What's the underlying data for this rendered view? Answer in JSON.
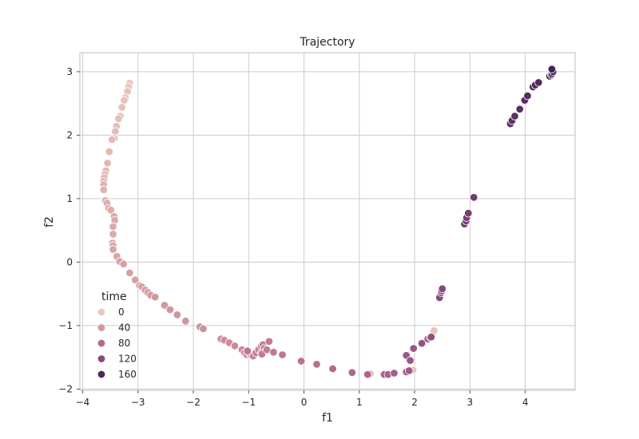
{
  "chart_data": {
    "type": "scatter",
    "title": "Trajectory",
    "xlabel": "f1",
    "ylabel": "f2",
    "xlim": [
      -4.05,
      4.9
    ],
    "ylim": [
      -2.02,
      3.3
    ],
    "xticks": [
      "−4",
      "−3",
      "−2",
      "−1",
      "0",
      "1",
      "2",
      "3",
      "4"
    ],
    "yticks": [
      "−2",
      "−1",
      "0",
      "1",
      "2",
      "3"
    ],
    "grid": true,
    "legend": {
      "title": "time",
      "placement": "lower-left",
      "entries": [
        {
          "label": "0",
          "color": "#e8c7be"
        },
        {
          "label": "40",
          "color": "#d39a9e"
        },
        {
          "label": "80",
          "color": "#b36a8e"
        },
        {
          "label": "120",
          "color": "#874a80"
        },
        {
          "label": "160",
          "color": "#4e2a5c"
        }
      ]
    },
    "hue_name": "time",
    "hue_range": [
      0,
      180
    ],
    "points": [
      {
        "x": -3.15,
        "y": 2.82,
        "t": 0
      },
      {
        "x": -3.17,
        "y": 2.76,
        "t": 1
      },
      {
        "x": -3.19,
        "y": 2.69,
        "t": 2
      },
      {
        "x": -3.23,
        "y": 2.59,
        "t": 3
      },
      {
        "x": -3.25,
        "y": 2.55,
        "t": 4
      },
      {
        "x": -3.29,
        "y": 2.44,
        "t": 5
      },
      {
        "x": -3.32,
        "y": 2.3,
        "t": 6
      },
      {
        "x": -3.35,
        "y": 2.26,
        "t": 7
      },
      {
        "x": -3.39,
        "y": 2.14,
        "t": 8
      },
      {
        "x": -3.41,
        "y": 2.06,
        "t": 9
      },
      {
        "x": -3.43,
        "y": 1.95,
        "t": 10
      },
      {
        "x": -3.47,
        "y": 1.93,
        "t": 11
      },
      {
        "x": -3.52,
        "y": 1.74,
        "t": 12
      },
      {
        "x": -3.55,
        "y": 1.56,
        "t": 13
      },
      {
        "x": -3.58,
        "y": 1.44,
        "t": 14
      },
      {
        "x": -3.6,
        "y": 1.38,
        "t": 15
      },
      {
        "x": -3.61,
        "y": 1.33,
        "t": 16
      },
      {
        "x": -3.62,
        "y": 1.27,
        "t": 17
      },
      {
        "x": -3.62,
        "y": 1.22,
        "t": 18
      },
      {
        "x": -3.62,
        "y": 1.14,
        "t": 19
      },
      {
        "x": -3.59,
        "y": 0.97,
        "t": 20
      },
      {
        "x": -3.56,
        "y": 0.93,
        "t": 21
      },
      {
        "x": -3.53,
        "y": 0.85,
        "t": 22
      },
      {
        "x": -3.49,
        "y": 0.82,
        "t": 23
      },
      {
        "x": -3.43,
        "y": 0.72,
        "t": 24
      },
      {
        "x": -3.42,
        "y": 0.66,
        "t": 25
      },
      {
        "x": -3.45,
        "y": 0.56,
        "t": 26
      },
      {
        "x": -3.45,
        "y": 0.44,
        "t": 27
      },
      {
        "x": -3.46,
        "y": 0.3,
        "t": 28
      },
      {
        "x": -3.45,
        "y": 0.26,
        "t": 29
      },
      {
        "x": -3.45,
        "y": 0.2,
        "t": 30
      },
      {
        "x": -3.38,
        "y": 0.09,
        "t": 31
      },
      {
        "x": -3.33,
        "y": 0.01,
        "t": 32
      },
      {
        "x": -3.26,
        "y": -0.03,
        "t": 33
      },
      {
        "x": -3.15,
        "y": -0.17,
        "t": 34
      },
      {
        "x": -3.05,
        "y": -0.28,
        "t": 35
      },
      {
        "x": -2.97,
        "y": -0.37,
        "t": 36
      },
      {
        "x": -2.93,
        "y": -0.39,
        "t": 37
      },
      {
        "x": -2.87,
        "y": -0.44,
        "t": 38
      },
      {
        "x": -2.82,
        "y": -0.48,
        "t": 39
      },
      {
        "x": -2.77,
        "y": -0.52,
        "t": 40
      },
      {
        "x": -2.69,
        "y": -0.55,
        "t": 41
      },
      {
        "x": -2.52,
        "y": -0.68,
        "t": 42
      },
      {
        "x": -2.42,
        "y": -0.75,
        "t": 43
      },
      {
        "x": -2.29,
        "y": -0.83,
        "t": 44
      },
      {
        "x": -2.14,
        "y": -0.93,
        "t": 45
      },
      {
        "x": -1.88,
        "y": -1.02,
        "t": 46
      },
      {
        "x": -1.82,
        "y": -1.05,
        "t": 47
      },
      {
        "x": -1.5,
        "y": -1.21,
        "t": 48
      },
      {
        "x": -1.44,
        "y": -1.23,
        "t": 49
      },
      {
        "x": -1.35,
        "y": -1.27,
        "t": 50
      },
      {
        "x": -1.25,
        "y": -1.32,
        "t": 51
      },
      {
        "x": -1.12,
        "y": -1.38,
        "t": 52
      },
      {
        "x": -1.07,
        "y": -1.43,
        "t": 53
      },
      {
        "x": -1.03,
        "y": -1.46,
        "t": 54
      },
      {
        "x": -0.98,
        "y": -1.45,
        "t": 55
      },
      {
        "x": -0.95,
        "y": -1.47,
        "t": 56
      },
      {
        "x": -0.92,
        "y": -1.48,
        "t": 57
      },
      {
        "x": -0.87,
        "y": -1.43,
        "t": 58
      },
      {
        "x": -0.82,
        "y": -1.38,
        "t": 59
      },
      {
        "x": -0.77,
        "y": -1.32,
        "t": 60
      },
      {
        "x": -0.74,
        "y": -1.3,
        "t": 61
      },
      {
        "x": -0.72,
        "y": -1.36,
        "t": 62
      },
      {
        "x": -0.77,
        "y": -1.43,
        "t": 63
      },
      {
        "x": -0.76,
        "y": -1.45,
        "t": 64
      },
      {
        "x": -0.67,
        "y": -1.38,
        "t": 65
      },
      {
        "x": -0.63,
        "y": -1.25,
        "t": 66
      },
      {
        "x": -0.55,
        "y": -1.42,
        "t": 67
      },
      {
        "x": -0.39,
        "y": -1.46,
        "t": 68
      },
      {
        "x": -1.02,
        "y": -1.4,
        "t": 70
      },
      {
        "x": -0.05,
        "y": -1.56,
        "t": 73
      },
      {
        "x": 0.23,
        "y": -1.61,
        "t": 76
      },
      {
        "x": 0.52,
        "y": -1.68,
        "t": 80
      },
      {
        "x": 0.87,
        "y": -1.74,
        "t": 84
      },
      {
        "x": 1.15,
        "y": -1.77,
        "t": 86
      },
      {
        "x": 1.2,
        "y": -1.76,
        "t": 8
      },
      {
        "x": 1.45,
        "y": -1.77,
        "t": 90
      },
      {
        "x": 1.52,
        "y": -1.77,
        "t": 92
      },
      {
        "x": 1.63,
        "y": -1.75,
        "t": 95
      },
      {
        "x": 1.85,
        "y": -1.73,
        "t": 98
      },
      {
        "x": 1.9,
        "y": -1.71,
        "t": 100
      },
      {
        "x": 1.97,
        "y": -1.7,
        "t": 5
      },
      {
        "x": 1.85,
        "y": -1.47,
        "t": 102
      },
      {
        "x": 1.92,
        "y": -1.55,
        "t": 104
      },
      {
        "x": 1.98,
        "y": -1.36,
        "t": 106
      },
      {
        "x": 2.13,
        "y": -1.28,
        "t": 108
      },
      {
        "x": 2.24,
        "y": -1.21,
        "t": 110
      },
      {
        "x": 2.28,
        "y": -1.19,
        "t": 112
      },
      {
        "x": 2.3,
        "y": -1.18,
        "t": 113
      },
      {
        "x": 2.33,
        "y": -1.12,
        "t": 2
      },
      {
        "x": 2.35,
        "y": -1.08,
        "t": 3
      },
      {
        "x": 2.45,
        "y": -0.56,
        "t": 118
      },
      {
        "x": 2.48,
        "y": -0.48,
        "t": 120
      },
      {
        "x": 2.49,
        "y": -0.45,
        "t": 121
      },
      {
        "x": 2.5,
        "y": -0.42,
        "t": 122
      },
      {
        "x": 2.9,
        "y": 0.6,
        "t": 130
      },
      {
        "x": 2.93,
        "y": 0.65,
        "t": 131
      },
      {
        "x": 2.94,
        "y": 0.7,
        "t": 132
      },
      {
        "x": 2.97,
        "y": 0.77,
        "t": 133
      },
      {
        "x": 3.07,
        "y": 1.02,
        "t": 136
      },
      {
        "x": 3.73,
        "y": 2.18,
        "t": 148
      },
      {
        "x": 3.76,
        "y": 2.23,
        "t": 149
      },
      {
        "x": 3.81,
        "y": 2.3,
        "t": 150
      },
      {
        "x": 3.9,
        "y": 2.41,
        "t": 152
      },
      {
        "x": 3.99,
        "y": 2.55,
        "t": 154
      },
      {
        "x": 4.04,
        "y": 2.62,
        "t": 155
      },
      {
        "x": 4.14,
        "y": 2.76,
        "t": 157
      },
      {
        "x": 4.18,
        "y": 2.79,
        "t": 158
      },
      {
        "x": 4.24,
        "y": 2.83,
        "t": 159
      },
      {
        "x": 4.44,
        "y": 2.93,
        "t": 163
      },
      {
        "x": 4.47,
        "y": 2.95,
        "t": 164
      },
      {
        "x": 4.48,
        "y": 2.97,
        "t": 165
      },
      {
        "x": 4.5,
        "y": 3.0,
        "t": 166
      },
      {
        "x": 4.48,
        "y": 3.04,
        "t": 167
      }
    ]
  }
}
